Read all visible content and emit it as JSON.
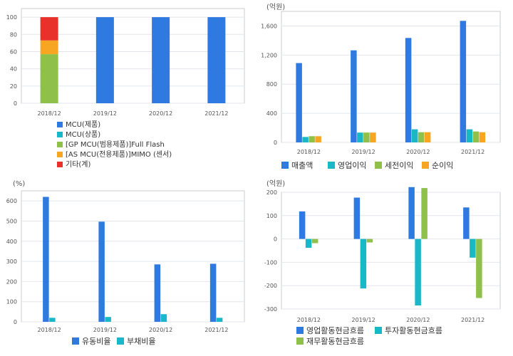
{
  "chart_data": [
    {
      "type": "bar",
      "stacked": true,
      "categories": [
        "2018/12",
        "2019/12",
        "2020/12",
        "2021/12"
      ],
      "ylim": [
        0,
        110
      ],
      "yticks": [
        0,
        20,
        40,
        60,
        80,
        100
      ],
      "ylabel": "",
      "series": [
        {
          "name": "MCU(제품)",
          "color": "#2f7ae0",
          "values": [
            0,
            100,
            100,
            100
          ]
        },
        {
          "name": "MCU(상품)",
          "color": "#18b8c8",
          "values": [
            0,
            0,
            0,
            0
          ]
        },
        {
          "name": "[GP MCU(범용제품)]Full Flash",
          "color": "#8ec04a",
          "values": [
            57,
            0,
            0,
            0
          ]
        },
        {
          "name": "[AS MCU(전용제품)]MIMO (센서)",
          "color": "#f6a623",
          "values": [
            16,
            0,
            0,
            0
          ]
        },
        {
          "name": "기타(계)",
          "color": "#e8312a",
          "values": [
            27,
            0,
            0,
            0
          ]
        }
      ],
      "legend_position": "bottom-left"
    },
    {
      "type": "bar",
      "categories": [
        "2018/12",
        "2019/12",
        "2020/12",
        "2021/12"
      ],
      "ylim": [
        0,
        1800
      ],
      "yticks": [
        0,
        400,
        800,
        1200,
        1600
      ],
      "ytick_labels": [
        "0",
        "400",
        "800",
        "1,200",
        "1,600"
      ],
      "unit_label": "(억원)",
      "series": [
        {
          "name": "매출액",
          "color": "#2f7ae0",
          "values": [
            1090,
            1265,
            1435,
            1670
          ]
        },
        {
          "name": "영업이익",
          "color": "#18b8c8",
          "values": [
            75,
            135,
            180,
            180
          ]
        },
        {
          "name": "세전이익",
          "color": "#8ec04a",
          "values": [
            85,
            135,
            140,
            150
          ]
        },
        {
          "name": "순이익",
          "color": "#f6a623",
          "values": [
            85,
            135,
            140,
            140
          ]
        }
      ],
      "legend_position": "bottom"
    },
    {
      "type": "bar",
      "categories": [
        "2018/12",
        "2019/12",
        "2020/12",
        "2021/12"
      ],
      "ylim": [
        0,
        650
      ],
      "yticks": [
        0,
        100,
        200,
        300,
        400,
        500,
        600
      ],
      "unit_label": "(%)",
      "series": [
        {
          "name": "유동비율",
          "color": "#2f7ae0",
          "values": [
            620,
            497,
            285,
            288
          ]
        },
        {
          "name": "부채비율",
          "color": "#18b8c8",
          "values": [
            20,
            24,
            38,
            20
          ]
        }
      ],
      "legend_position": "bottom"
    },
    {
      "type": "bar",
      "categories": [
        "2018/12",
        "2019/12",
        "2020/12",
        "2021/12"
      ],
      "ylim": [
        -300,
        200
      ],
      "yticks": [
        -300,
        -200,
        -100,
        0,
        100,
        200
      ],
      "unit_label": "(억원)",
      "series": [
        {
          "name": "영업활동현금흐름",
          "color": "#2f7ae0",
          "values": [
            118,
            177,
            222,
            135
          ]
        },
        {
          "name": "투자활동현금흐름",
          "color": "#18b8c8",
          "values": [
            -38,
            -212,
            -285,
            -80
          ]
        },
        {
          "name": "재무활동현금흐름",
          "color": "#8ec04a",
          "values": [
            -18,
            -15,
            218,
            -253
          ]
        }
      ],
      "legend_position": "bottom"
    }
  ]
}
